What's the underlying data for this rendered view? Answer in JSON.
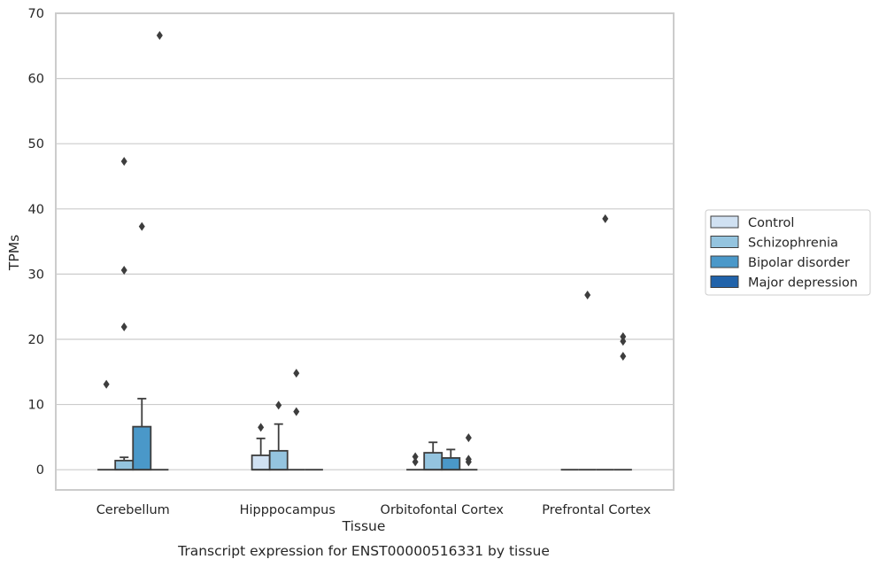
{
  "chart_data": {
    "type": "box",
    "title": "Transcript expression for ENST00000516331 by tissue",
    "xlabel": "Tissue",
    "ylabel": "TPMs",
    "ylim": [
      -3.1,
      70
    ],
    "yticks": [
      0,
      10,
      20,
      30,
      40,
      50,
      60,
      70
    ],
    "grid": true,
    "legend_position": "right",
    "categories": [
      "Cerebellum",
      "Hipppocampus",
      "Orbitofontal Cortex",
      "Prefrontal Cortex"
    ],
    "series": [
      {
        "name": "Control",
        "color": "#d0e1f2",
        "boxes": [
          {
            "q1": 0,
            "median": 0,
            "q3": 0,
            "whisker_low": 0,
            "whisker_high": 0,
            "outliers": [
              13.1
            ]
          },
          {
            "q1": 0,
            "median": 0,
            "q3": 2.2,
            "whisker_low": 0,
            "whisker_high": 4.8,
            "outliers": [
              6.5
            ]
          },
          {
            "q1": 0,
            "median": 0,
            "q3": 0,
            "whisker_low": 0,
            "whisker_high": 0,
            "outliers": [
              1.2,
              2.0
            ]
          },
          {
            "q1": 0,
            "median": 0,
            "q3": 0,
            "whisker_low": 0,
            "whisker_high": 0,
            "outliers": []
          }
        ]
      },
      {
        "name": "Schizophrenia",
        "color": "#94c4df",
        "boxes": [
          {
            "q1": 0,
            "median": 0,
            "q3": 1.4,
            "whisker_low": 0,
            "whisker_high": 1.9,
            "outliers": [
              21.9,
              30.6,
              47.3
            ]
          },
          {
            "q1": 0,
            "median": 0,
            "q3": 2.9,
            "whisker_low": 0,
            "whisker_high": 7.0,
            "outliers": [
              9.9
            ]
          },
          {
            "q1": 0,
            "median": 0,
            "q3": 2.6,
            "whisker_low": 0,
            "whisker_high": 4.2,
            "outliers": []
          },
          {
            "q1": 0,
            "median": 0,
            "q3": 0,
            "whisker_low": 0,
            "whisker_high": 0,
            "outliers": [
              26.8
            ]
          }
        ]
      },
      {
        "name": "Bipolar disorder",
        "color": "#4a98c9",
        "boxes": [
          {
            "q1": 0,
            "median": 0,
            "q3": 6.6,
            "whisker_low": 0,
            "whisker_high": 10.9,
            "outliers": [
              37.3
            ]
          },
          {
            "q1": 0,
            "median": 0,
            "q3": 0,
            "whisker_low": 0,
            "whisker_high": 0,
            "outliers": [
              8.9,
              14.8
            ]
          },
          {
            "q1": 0,
            "median": 0,
            "q3": 1.8,
            "whisker_low": 0,
            "whisker_high": 3.1,
            "outliers": []
          },
          {
            "q1": 0,
            "median": 0,
            "q3": 0,
            "whisker_low": 0,
            "whisker_high": 0,
            "outliers": [
              38.5
            ]
          }
        ]
      },
      {
        "name": "Major depression",
        "color": "#2163aa",
        "boxes": [
          {
            "q1": 0,
            "median": 0,
            "q3": 0,
            "whisker_low": 0,
            "whisker_high": 0,
            "outliers": [
              66.6
            ]
          },
          {
            "q1": 0,
            "median": 0,
            "q3": 0,
            "whisker_low": 0,
            "whisker_high": 0,
            "outliers": []
          },
          {
            "q1": 0,
            "median": 0,
            "q3": 0,
            "whisker_low": 0,
            "whisker_high": 0,
            "outliers": [
              1.2,
              1.6,
              4.9
            ]
          },
          {
            "q1": 0,
            "median": 0,
            "q3": 0,
            "whisker_low": 0,
            "whisker_high": 0,
            "outliers": [
              17.4,
              19.7,
              20.4
            ]
          }
        ]
      }
    ]
  }
}
